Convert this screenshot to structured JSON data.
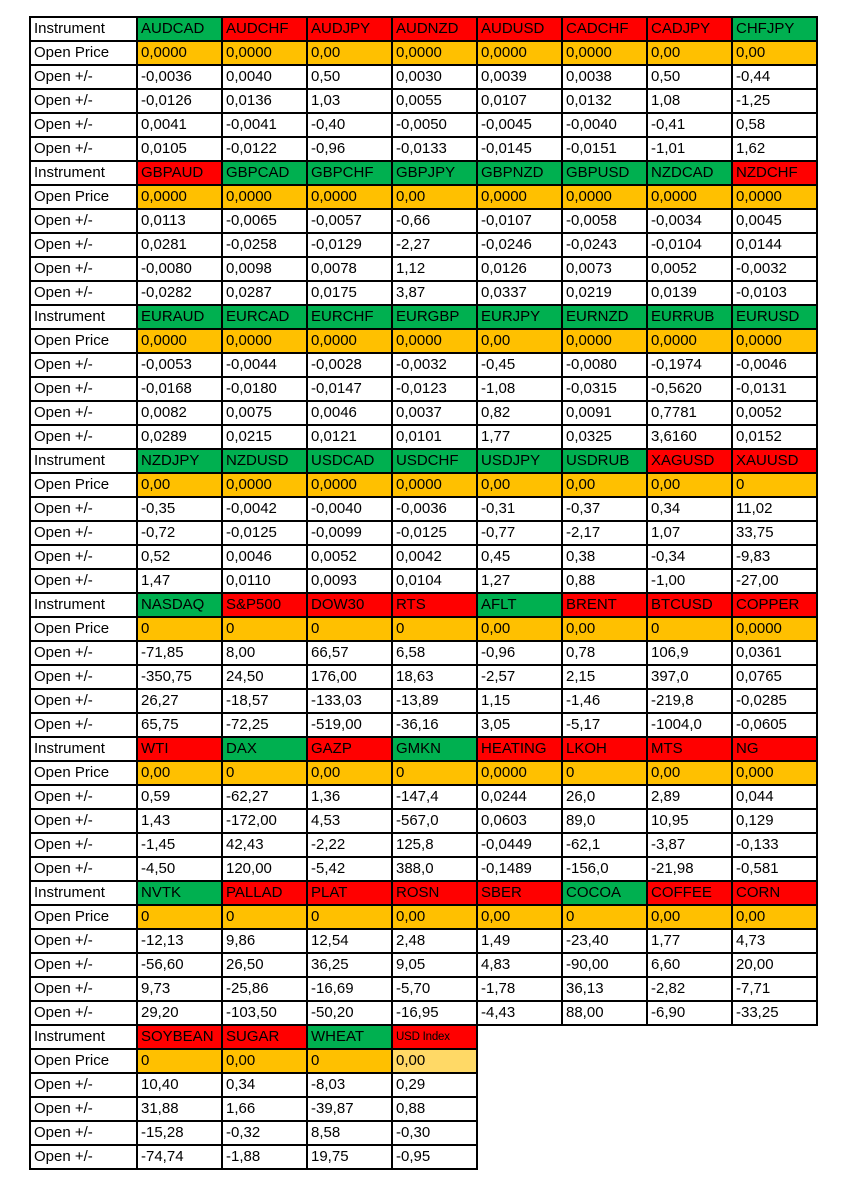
{
  "table": {
    "row_labels": {
      "instrument": "Instrument",
      "open_price": "Open Price",
      "open_delta": "Open +/-"
    },
    "colors": {
      "green": "#00B050",
      "red": "#FF0000",
      "orange": "#FFC000",
      "light_orange": "#FFD966",
      "label_blue": "#B4C6E7",
      "ticker_text": "#C00000",
      "border": "#000000"
    },
    "blocks": [
      {
        "instruments": [
          {
            "name": "AUDCAD",
            "bg": "green"
          },
          {
            "name": "AUDCHF",
            "bg": "red"
          },
          {
            "name": "AUDJPY",
            "bg": "red"
          },
          {
            "name": "AUDNZD",
            "bg": "red"
          },
          {
            "name": "AUDUSD",
            "bg": "red"
          },
          {
            "name": "CADCHF",
            "bg": "red"
          },
          {
            "name": "CADJPY",
            "bg": "red"
          },
          {
            "name": "CHFJPY",
            "bg": "green"
          }
        ],
        "open_prices": [
          {
            "value": "0,0000",
            "bg": "orange"
          },
          {
            "value": "0,0000",
            "bg": "orange"
          },
          {
            "value": "0,00",
            "bg": "orange"
          },
          {
            "value": "0,0000",
            "bg": "orange"
          },
          {
            "value": "0,0000",
            "bg": "orange"
          },
          {
            "value": "0,0000",
            "bg": "orange"
          },
          {
            "value": "0,00",
            "bg": "orange"
          },
          {
            "value": "0,00",
            "bg": "orange"
          }
        ],
        "delta_rows": [
          [
            "-0,0036",
            "0,0040",
            "0,50",
            "0,0030",
            "0,0039",
            "0,0038",
            "0,50",
            "-0,44"
          ],
          [
            "-0,0126",
            "0,0136",
            "1,03",
            "0,0055",
            "0,0107",
            "0,0132",
            "1,08",
            "-1,25"
          ],
          [
            "0,0041",
            "-0,0041",
            "-0,40",
            "-0,0050",
            "-0,0045",
            "-0,0040",
            "-0,41",
            "0,58"
          ],
          [
            "0,0105",
            "-0,0122",
            "-0,96",
            "-0,0133",
            "-0,0145",
            "-0,0151",
            "-1,01",
            "1,62"
          ]
        ]
      },
      {
        "instruments": [
          {
            "name": "GBPAUD",
            "bg": "red"
          },
          {
            "name": "GBPCAD",
            "bg": "green"
          },
          {
            "name": "GBPCHF",
            "bg": "green"
          },
          {
            "name": "GBPJPY",
            "bg": "green"
          },
          {
            "name": "GBPNZD",
            "bg": "green"
          },
          {
            "name": "GBPUSD",
            "bg": "green"
          },
          {
            "name": "NZDCAD",
            "bg": "green"
          },
          {
            "name": "NZDCHF",
            "bg": "red"
          }
        ],
        "open_prices": [
          {
            "value": "0,0000",
            "bg": "orange"
          },
          {
            "value": "0,0000",
            "bg": "orange"
          },
          {
            "value": "0,0000",
            "bg": "orange"
          },
          {
            "value": "0,00",
            "bg": "orange"
          },
          {
            "value": "0,0000",
            "bg": "orange"
          },
          {
            "value": "0,0000",
            "bg": "orange"
          },
          {
            "value": "0,0000",
            "bg": "orange"
          },
          {
            "value": "0,0000",
            "bg": "orange"
          }
        ],
        "delta_rows": [
          [
            "0,0113",
            "-0,0065",
            "-0,0057",
            "-0,66",
            "-0,0107",
            "-0,0058",
            "-0,0034",
            "0,0045"
          ],
          [
            "0,0281",
            "-0,0258",
            "-0,0129",
            "-2,27",
            "-0,0246",
            "-0,0243",
            "-0,0104",
            "0,0144"
          ],
          [
            "-0,0080",
            "0,0098",
            "0,0078",
            "1,12",
            "0,0126",
            "0,0073",
            "0,0052",
            "-0,0032"
          ],
          [
            "-0,0282",
            "0,0287",
            "0,0175",
            "3,87",
            "0,0337",
            "0,0219",
            "0,0139",
            "-0,0103"
          ]
        ]
      },
      {
        "instruments": [
          {
            "name": "EURAUD",
            "bg": "green"
          },
          {
            "name": "EURCAD",
            "bg": "green"
          },
          {
            "name": "EURCHF",
            "bg": "green"
          },
          {
            "name": "EURGBP",
            "bg": "green"
          },
          {
            "name": "EURJPY",
            "bg": "green"
          },
          {
            "name": "EURNZD",
            "bg": "green"
          },
          {
            "name": "EURRUB",
            "bg": "green"
          },
          {
            "name": "EURUSD",
            "bg": "green"
          }
        ],
        "open_prices": [
          {
            "value": "0,0000",
            "bg": "orange"
          },
          {
            "value": "0,0000",
            "bg": "orange"
          },
          {
            "value": "0,0000",
            "bg": "orange"
          },
          {
            "value": "0,0000",
            "bg": "orange"
          },
          {
            "value": "0,00",
            "bg": "orange"
          },
          {
            "value": "0,0000",
            "bg": "orange"
          },
          {
            "value": "0,0000",
            "bg": "orange"
          },
          {
            "value": "0,0000",
            "bg": "orange"
          }
        ],
        "delta_rows": [
          [
            "-0,0053",
            "-0,0044",
            "-0,0028",
            "-0,0032",
            "-0,45",
            "-0,0080",
            "-0,1974",
            "-0,0046"
          ],
          [
            "-0,0168",
            "-0,0180",
            "-0,0147",
            "-0,0123",
            "-1,08",
            "-0,0315",
            "-0,5620",
            "-0,0131"
          ],
          [
            "0,0082",
            "0,0075",
            "0,0046",
            "0,0037",
            "0,82",
            "0,0091",
            "0,7781",
            "0,0052"
          ],
          [
            "0,0289",
            "0,0215",
            "0,0121",
            "0,0101",
            "1,77",
            "0,0325",
            "3,6160",
            "0,0152"
          ]
        ]
      },
      {
        "instruments": [
          {
            "name": "NZDJPY",
            "bg": "green"
          },
          {
            "name": "NZDUSD",
            "bg": "green"
          },
          {
            "name": "USDCAD",
            "bg": "green"
          },
          {
            "name": "USDCHF",
            "bg": "green"
          },
          {
            "name": "USDJPY",
            "bg": "green"
          },
          {
            "name": "USDRUB",
            "bg": "green"
          },
          {
            "name": "XAGUSD",
            "bg": "red"
          },
          {
            "name": "XAUUSD",
            "bg": "red"
          }
        ],
        "open_prices": [
          {
            "value": "0,00",
            "bg": "orange"
          },
          {
            "value": "0,0000",
            "bg": "orange"
          },
          {
            "value": "0,0000",
            "bg": "orange"
          },
          {
            "value": "0,0000",
            "bg": "orange"
          },
          {
            "value": "0,00",
            "bg": "orange"
          },
          {
            "value": "0,00",
            "bg": "orange"
          },
          {
            "value": "0,00",
            "bg": "orange"
          },
          {
            "value": "0",
            "bg": "orange"
          }
        ],
        "delta_rows": [
          [
            "-0,35",
            "-0,0042",
            "-0,0040",
            "-0,0036",
            "-0,31",
            "-0,37",
            "0,34",
            "11,02"
          ],
          [
            "-0,72",
            "-0,0125",
            "-0,0099",
            "-0,0125",
            "-0,77",
            "-2,17",
            "1,07",
            "33,75"
          ],
          [
            "0,52",
            "0,0046",
            "0,0052",
            "0,0042",
            "0,45",
            "0,38",
            "-0,34",
            "-9,83"
          ],
          [
            "1,47",
            "0,0110",
            "0,0093",
            "0,0104",
            "1,27",
            "0,88",
            "-1,00",
            "-27,00"
          ]
        ]
      },
      {
        "instruments": [
          {
            "name": "NASDAQ",
            "bg": "green"
          },
          {
            "name": "S&P500",
            "bg": "red"
          },
          {
            "name": "DOW30",
            "bg": "red"
          },
          {
            "name": "RTS",
            "bg": "red"
          },
          {
            "name": "AFLT",
            "bg": "green"
          },
          {
            "name": "BRENT",
            "bg": "red"
          },
          {
            "name": "BTCUSD",
            "bg": "red"
          },
          {
            "name": "COPPER",
            "bg": "red"
          }
        ],
        "open_prices": [
          {
            "value": "0",
            "bg": "orange"
          },
          {
            "value": "0",
            "bg": "orange"
          },
          {
            "value": "0",
            "bg": "orange"
          },
          {
            "value": "0",
            "bg": "orange"
          },
          {
            "value": "0,00",
            "bg": "orange"
          },
          {
            "value": "0,00",
            "bg": "orange"
          },
          {
            "value": "0",
            "bg": "orange"
          },
          {
            "value": "0,0000",
            "bg": "orange"
          }
        ],
        "delta_rows": [
          [
            "-71,85",
            "8,00",
            "66,57",
            "6,58",
            "-0,96",
            "0,78",
            "106,9",
            "0,0361"
          ],
          [
            "-350,75",
            "24,50",
            "176,00",
            "18,63",
            "-2,57",
            "2,15",
            "397,0",
            "0,0765"
          ],
          [
            "26,27",
            "-18,57",
            "-133,03",
            "-13,89",
            "1,15",
            "-1,46",
            "-219,8",
            "-0,0285"
          ],
          [
            "65,75",
            "-72,25",
            "-519,00",
            "-36,16",
            "3,05",
            "-5,17",
            "-1004,0",
            "-0,0605"
          ]
        ]
      },
      {
        "instruments": [
          {
            "name": "WTI",
            "bg": "red"
          },
          {
            "name": "DAX",
            "bg": "green"
          },
          {
            "name": "GAZP",
            "bg": "red"
          },
          {
            "name": "GMKN",
            "bg": "green"
          },
          {
            "name": "HEATING",
            "bg": "red"
          },
          {
            "name": "LKOH",
            "bg": "red"
          },
          {
            "name": "MTS",
            "bg": "red"
          },
          {
            "name": "NG",
            "bg": "red"
          }
        ],
        "open_prices": [
          {
            "value": "0,00",
            "bg": "orange"
          },
          {
            "value": "0",
            "bg": "orange"
          },
          {
            "value": "0,00",
            "bg": "orange"
          },
          {
            "value": "0",
            "bg": "orange"
          },
          {
            "value": "0,0000",
            "bg": "orange"
          },
          {
            "value": "0",
            "bg": "orange"
          },
          {
            "value": "0,00",
            "bg": "orange"
          },
          {
            "value": "0,000",
            "bg": "orange"
          }
        ],
        "delta_rows": [
          [
            "0,59",
            "-62,27",
            "1,36",
            "-147,4",
            "0,0244",
            "26,0",
            "2,89",
            "0,044"
          ],
          [
            "1,43",
            "-172,00",
            "4,53",
            "-567,0",
            "0,0603",
            "89,0",
            "10,95",
            "0,129"
          ],
          [
            "-1,45",
            "42,43",
            "-2,22",
            "125,8",
            "-0,0449",
            "-62,1",
            "-3,87",
            "-0,133"
          ],
          [
            "-4,50",
            "120,00",
            "-5,42",
            "388,0",
            "-0,1489",
            "-156,0",
            "-21,98",
            "-0,581"
          ]
        ]
      },
      {
        "instruments": [
          {
            "name": "NVTK",
            "bg": "green"
          },
          {
            "name": "PALLAD",
            "bg": "red"
          },
          {
            "name": "PLAT",
            "bg": "red"
          },
          {
            "name": "ROSN",
            "bg": "red"
          },
          {
            "name": "SBER",
            "bg": "red"
          },
          {
            "name": "COCOA",
            "bg": "green"
          },
          {
            "name": "COFFEE",
            "bg": "red"
          },
          {
            "name": "CORN",
            "bg": "red"
          }
        ],
        "open_prices": [
          {
            "value": "0",
            "bg": "orange"
          },
          {
            "value": "0",
            "bg": "orange"
          },
          {
            "value": "0",
            "bg": "orange"
          },
          {
            "value": "0,00",
            "bg": "orange"
          },
          {
            "value": "0,00",
            "bg": "orange"
          },
          {
            "value": "0",
            "bg": "orange"
          },
          {
            "value": "0,00",
            "bg": "orange"
          },
          {
            "value": "0,00",
            "bg": "orange"
          }
        ],
        "delta_rows": [
          [
            "-12,13",
            "9,86",
            "12,54",
            "2,48",
            "1,49",
            "-23,40",
            "1,77",
            "4,73"
          ],
          [
            "-56,60",
            "26,50",
            "36,25",
            "9,05",
            "4,83",
            "-90,00",
            "6,60",
            "20,00"
          ],
          [
            "9,73",
            "-25,86",
            "-16,69",
            "-5,70",
            "-1,78",
            "36,13",
            "-2,82",
            "-7,71"
          ],
          [
            "29,20",
            "-103,50",
            "-50,20",
            "-16,95",
            "-4,43",
            "88,00",
            "-6,90",
            "-33,25"
          ]
        ]
      },
      {
        "instruments": [
          {
            "name": "SOYBEAN",
            "bg": "red"
          },
          {
            "name": "SUGAR",
            "bg": "red"
          },
          {
            "name": "WHEAT",
            "bg": "green"
          },
          {
            "name": "USD Index",
            "bg": "red",
            "small": true
          }
        ],
        "open_prices": [
          {
            "value": "0",
            "bg": "orange"
          },
          {
            "value": "0,00",
            "bg": "orange"
          },
          {
            "value": "0",
            "bg": "orange"
          },
          {
            "value": "0,00",
            "bg": "light_orange"
          }
        ],
        "delta_rows": [
          [
            "10,40",
            "0,34",
            "-8,03",
            "0,29"
          ],
          [
            "31,88",
            "1,66",
            "-39,87",
            "0,88"
          ],
          [
            "-15,28",
            "-0,32",
            "8,58",
            "-0,30"
          ],
          [
            "-74,74",
            "-1,88",
            "19,75",
            "-0,95"
          ]
        ]
      }
    ]
  }
}
